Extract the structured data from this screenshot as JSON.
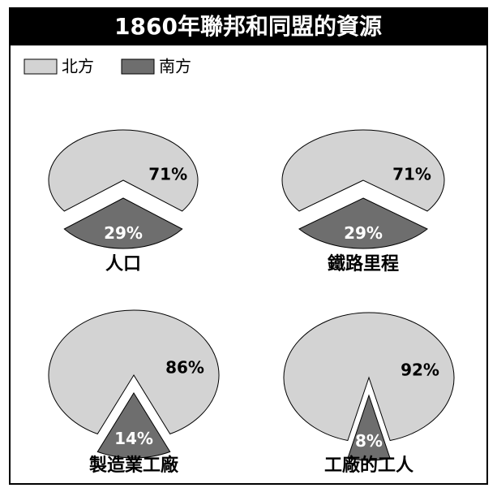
{
  "title": "1860年聯邦和同盟的資源",
  "legend": [
    {
      "name": "北方",
      "color": "#d3d3d3"
    },
    {
      "name": "南方",
      "color": "#6e6e6e"
    }
  ],
  "chart_data": [
    {
      "type": "pie",
      "title": "人口",
      "values": [
        71,
        29
      ],
      "value_labels": [
        "71%",
        "29%"
      ]
    },
    {
      "type": "pie",
      "title": "鐵路里程",
      "values": [
        71,
        29
      ],
      "value_labels": [
        "71%",
        "29%"
      ]
    },
    {
      "type": "pie",
      "title": "製造業工廠",
      "values": [
        86,
        14
      ],
      "value_labels": [
        "86%",
        "14%"
      ]
    },
    {
      "type": "pie",
      "title": "工廠的工人",
      "values": [
        92,
        8
      ],
      "value_labels": [
        "92%",
        "8%"
      ]
    }
  ]
}
